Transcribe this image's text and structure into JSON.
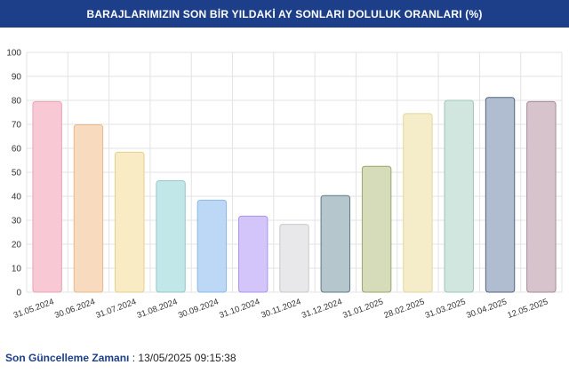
{
  "header": {
    "title": "BARAJLARIMIZIN SON BİR YILDAKİ AY SONLARI DOLULUK ORANLARI (%)"
  },
  "footer": {
    "label": "Son Güncelleme Zamanı",
    "separator": " : ",
    "value": "13/05/2025 09:15:38"
  },
  "chart_data": {
    "type": "bar",
    "title": "BARAJLARIMIZIN SON BİR YILDAKİ AY SONLARI DOLULUK ORANLARI (%)",
    "xlabel": "",
    "ylabel": "",
    "ylim": [
      0,
      100
    ],
    "yticks": [
      0,
      10,
      20,
      30,
      40,
      50,
      60,
      70,
      80,
      90,
      100
    ],
    "grid": true,
    "legend": "none",
    "categories": [
      "31.05.2024",
      "30.06.2024",
      "31.07.2024",
      "31.08.2024",
      "30.09.2024",
      "31.10.2024",
      "30.11.2024",
      "31.12.2024",
      "31.01.2025",
      "28.02.2025",
      "31.03.2025",
      "30.04.2025",
      "12.05.2025"
    ],
    "values": [
      79.5,
      69.8,
      58.4,
      46.5,
      38.4,
      31.7,
      28.3,
      40.3,
      52.5,
      74.5,
      80.0,
      81.2,
      79.5
    ],
    "fills": [
      "#f8c9d4",
      "#f8dbbe",
      "#f9ebc3",
      "#c2e7e8",
      "#bcd8f6",
      "#d3c4f9",
      "#e8e8ea",
      "#b5c7cc",
      "#d6dcb9",
      "#f5ecc9",
      "#d1e6de",
      "#b0bcd0",
      "#d6c3cb"
    ],
    "strokes": [
      "#e8a4b5",
      "#e6b98e",
      "#e6cf8c",
      "#92c9cb",
      "#8cb9e4",
      "#ab94ea",
      "#c9c9cd",
      "#5f7882",
      "#9aa56e",
      "#e3d69f",
      "#9ec5b7",
      "#55657f",
      "#a48c98"
    ]
  }
}
